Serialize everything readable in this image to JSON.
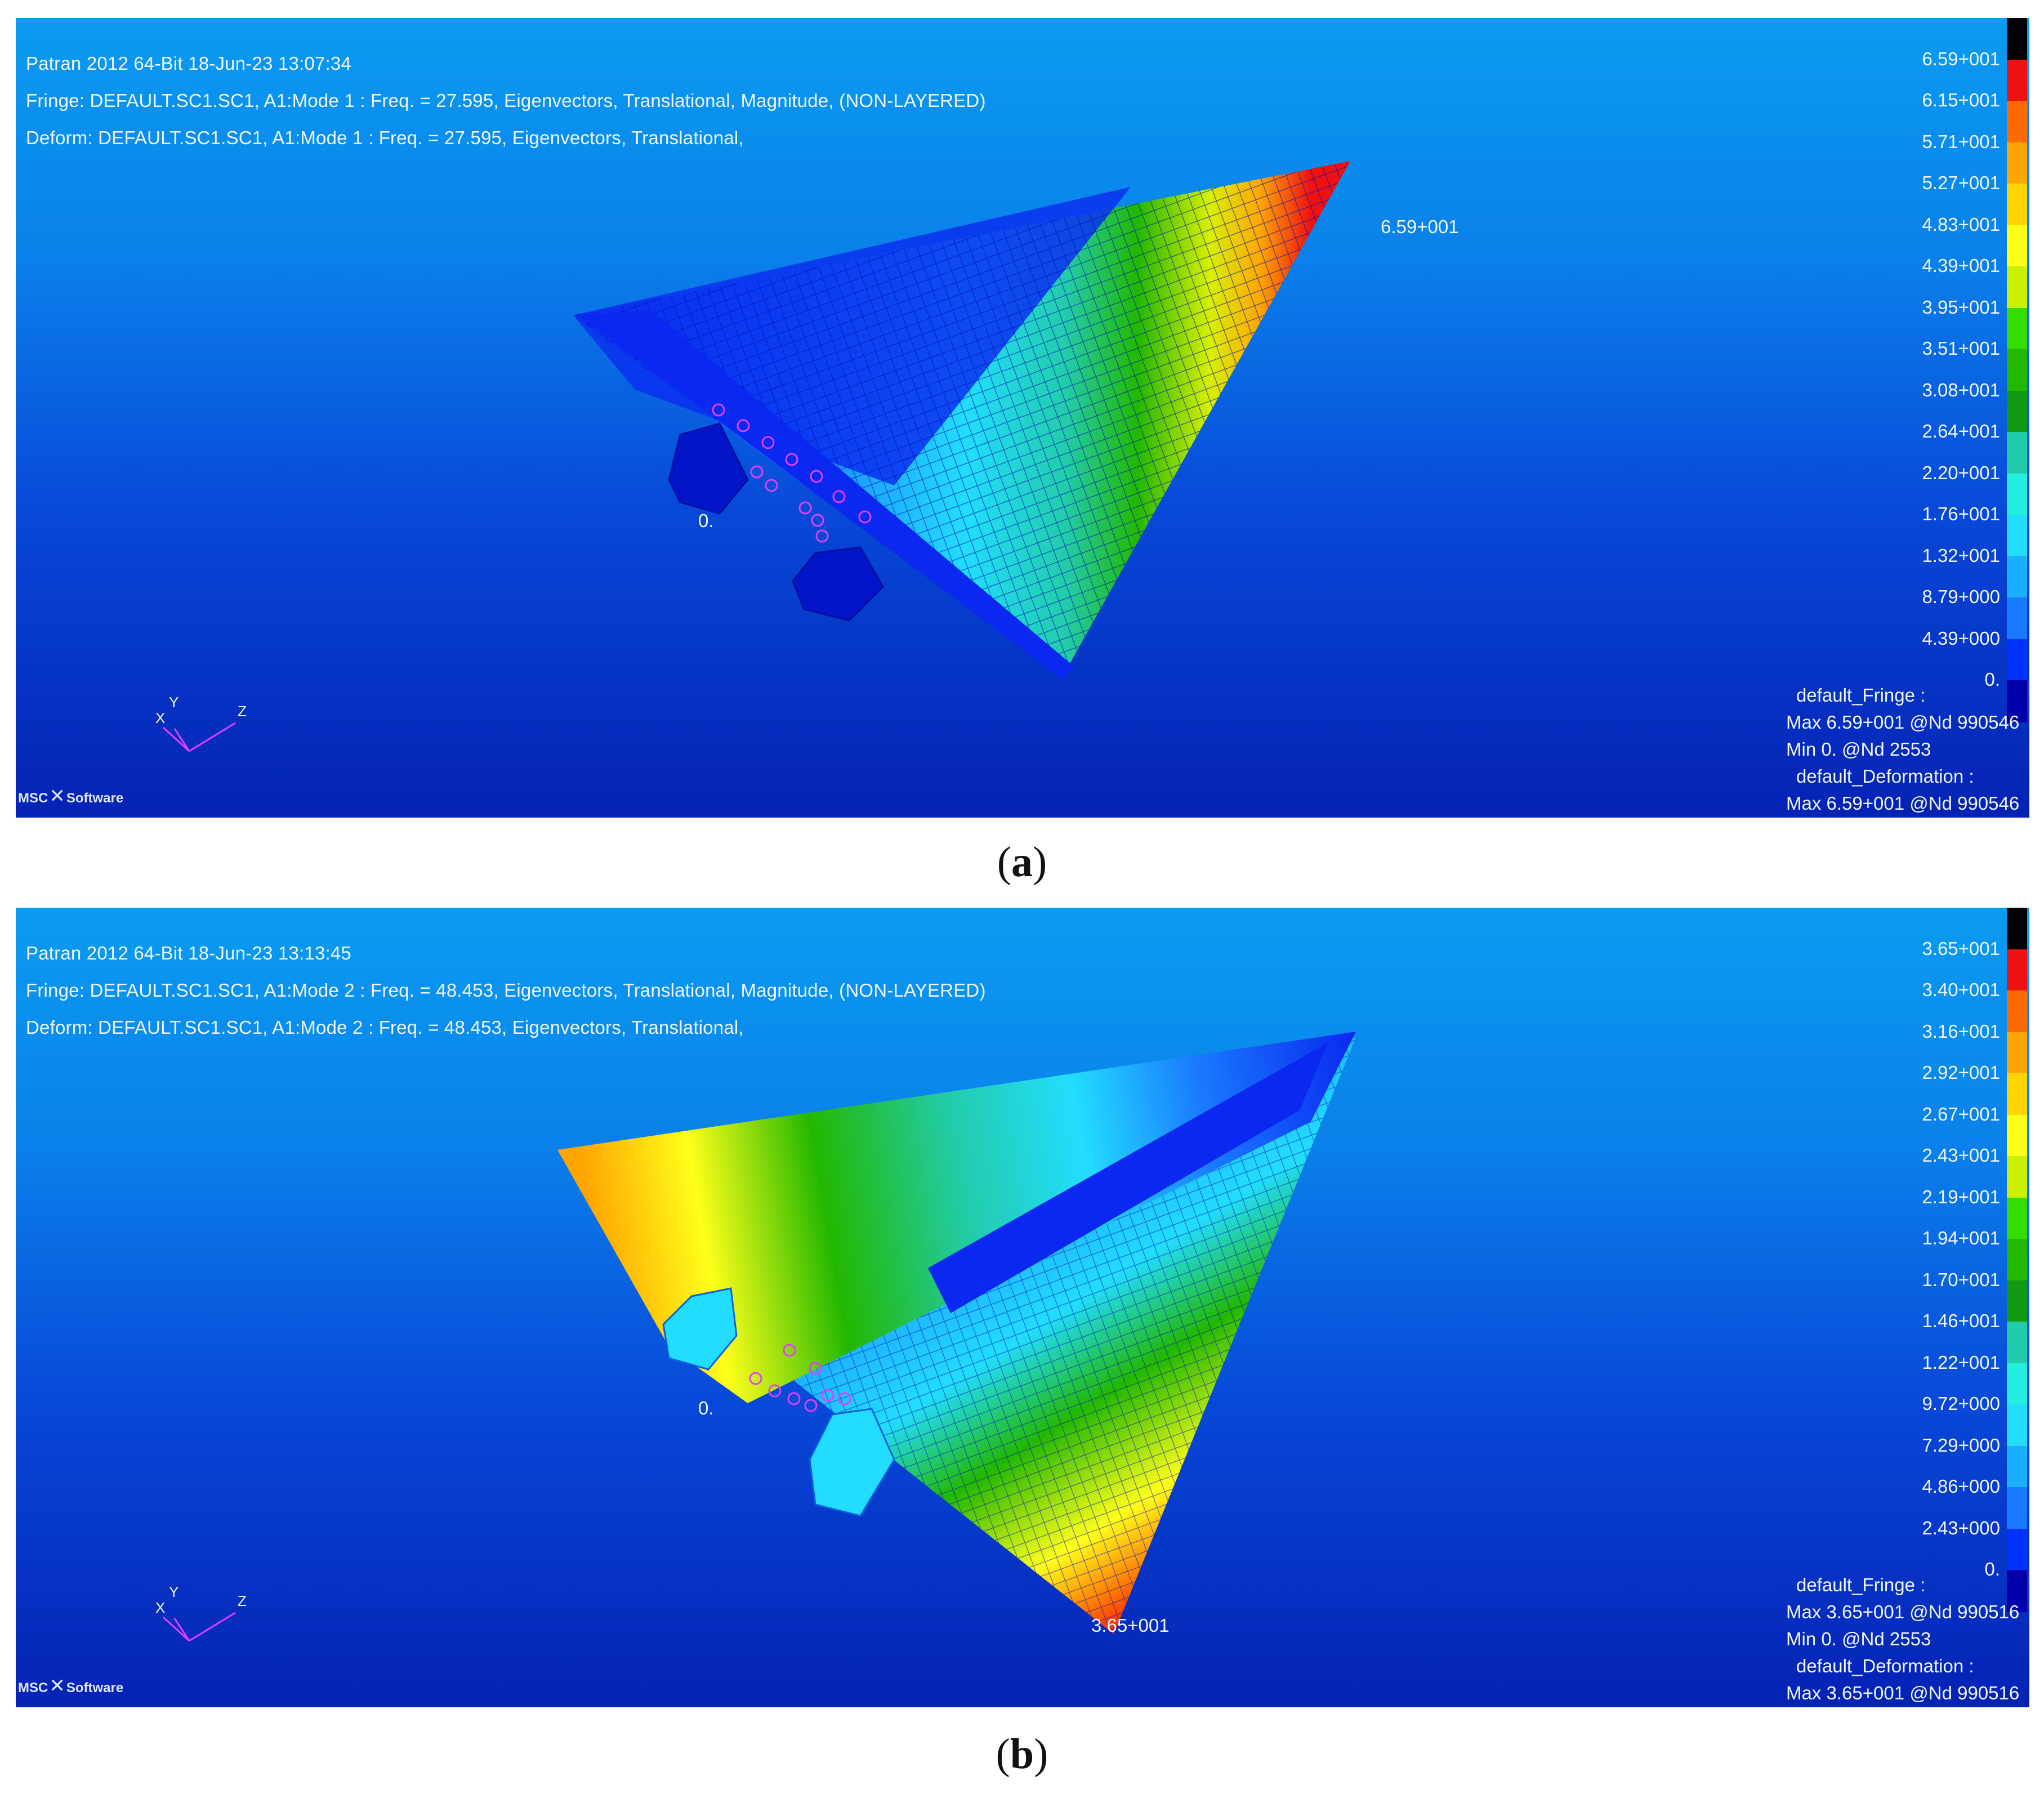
{
  "panels": [
    {
      "id": "a",
      "header": {
        "line1": "Patran 2012 64-Bit 18-Jun-23 13:07:34",
        "line2": "Fringe: DEFAULT.SC1.SC1, A1:Mode 1 : Freq. = 27.595, Eigenvectors, Translational, Magnitude, (NON-LAYERED)",
        "line3": "Deform: DEFAULT.SC1.SC1, A1:Mode 1 : Freq. = 27.595, Eigenvectors, Translational,"
      },
      "legend_ticks": [
        "6.59+001",
        "6.15+001",
        "5.71+001",
        "5.27+001",
        "4.83+001",
        "4.39+001",
        "3.95+001",
        "3.51+001",
        "3.08+001",
        "2.64+001",
        "2.20+001",
        "1.76+001",
        "1.32+001",
        "8.79+000",
        "4.39+000",
        "0."
      ],
      "info": {
        "fringe_title": "default_Fringe :",
        "fringe_max": "Max 6.59+001 @Nd 990546",
        "fringe_min": "Min  0. @Nd 2553",
        "deform_title": "default_Deformation :",
        "deform_max": "Max 6.59+001 @Nd 990546"
      },
      "max_marker": "6.59+001",
      "min_marker": "0.",
      "axes": {
        "x": "X",
        "y": "Y",
        "z": "Z"
      },
      "logo": {
        "left": "MSC",
        "right": "Software"
      },
      "caption": "a"
    },
    {
      "id": "b",
      "header": {
        "line1": "Patran 2012 64-Bit 18-Jun-23 13:13:45",
        "line2": "Fringe: DEFAULT.SC1.SC1, A1:Mode 2 : Freq. = 48.453, Eigenvectors, Translational, Magnitude, (NON-LAYERED)",
        "line3": "Deform: DEFAULT.SC1.SC1, A1:Mode 2 : Freq. = 48.453, Eigenvectors, Translational,"
      },
      "legend_ticks": [
        "3.65+001",
        "3.40+001",
        "3.16+001",
        "2.92+001",
        "2.67+001",
        "2.43+001",
        "2.19+001",
        "1.94+001",
        "1.70+001",
        "1.46+001",
        "1.22+001",
        "9.72+000",
        "7.29+000",
        "4.86+000",
        "2.43+000",
        "0."
      ],
      "info": {
        "fringe_title": "default_Fringe :",
        "fringe_max": "Max 3.65+001 @Nd 990516",
        "fringe_min": "Min  0. @Nd 2553",
        "deform_title": "default_Deformation :",
        "deform_max": "Max 3.65+001 @Nd 990516"
      },
      "max_marker": "3.65+001",
      "min_marker": "0.",
      "axes": {
        "x": "X",
        "y": "Y",
        "z": "Z"
      },
      "logo": {
        "left": "MSC",
        "right": "Software"
      },
      "caption": "b"
    }
  ],
  "legend_colors": [
    "#000000",
    "#ee1111",
    "#ff6a00",
    "#ffa500",
    "#ffd400",
    "#ffff1a",
    "#c8f000",
    "#33dd00",
    "#22b800",
    "#119911",
    "#22ccaa",
    "#22eedd",
    "#22ddff",
    "#1ab0ff",
    "#1a7aff",
    "#0033ff",
    "#0000aa"
  ],
  "colors": {
    "background_top": "#0a9cf0",
    "background_bottom": "#0422b4",
    "text": "#f2f6ff",
    "mesh_line": "#0000c8",
    "constraint_marker": "#e040ff",
    "axis_triad": "#e040ff"
  }
}
